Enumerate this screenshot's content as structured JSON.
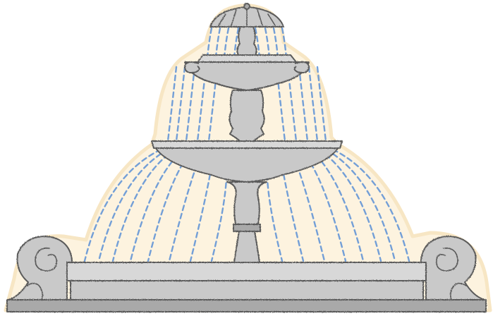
{
  "illustration": {
    "subject": "three-tier-stone-fountain",
    "palette": {
      "background": "#ffffff",
      "spray_glow": "#fdf3df",
      "glow_edge": "#f7e6c4",
      "stone": "#c9c9c9",
      "stone_light": "#d8d8d8",
      "stone_dark": "#a9a9a9",
      "outline": "#5a5a5a",
      "water": "#5b8fd6"
    }
  }
}
